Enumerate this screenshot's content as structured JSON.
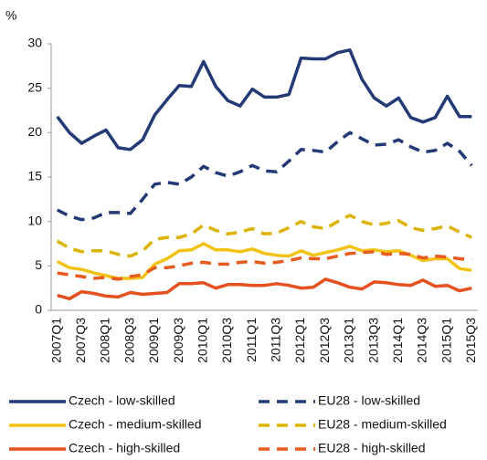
{
  "chart_data": {
    "type": "line",
    "y_label": "%",
    "categories": [
      "2007Q1",
      null,
      "2007Q3",
      null,
      "2008Q1",
      null,
      "2008Q3",
      null,
      "2009Q1",
      null,
      "2009Q3",
      null,
      "2010Q1",
      null,
      "2010Q3",
      null,
      "2011Q1",
      null,
      "2011Q3",
      null,
      "2012Q1",
      null,
      "2012Q3",
      null,
      "2013Q1",
      null,
      "2013Q3",
      null,
      "2014Q1",
      null,
      "2014Q3",
      null,
      "2015Q1",
      null,
      "2015Q3"
    ],
    "ylim": [
      0,
      30
    ],
    "yticks": [
      0,
      5,
      10,
      15,
      20,
      25,
      30
    ],
    "series": [
      {
        "name": "Czech - low-skilled",
        "color": "#243a76",
        "dash": false,
        "values": [
          21.8,
          20,
          18.8,
          19.6,
          20.3,
          18.3,
          18.1,
          19.2,
          22,
          23.7,
          25.3,
          25.2,
          28,
          25.2,
          23.6,
          23,
          24.9,
          24,
          24,
          24.3,
          28.4,
          28.3,
          28.3,
          29,
          29.3,
          26,
          23.9,
          23,
          23.9,
          21.7,
          21.2,
          21.7,
          24.1,
          21.8,
          21.8
        ]
      },
      {
        "name": "EU28 - low-skilled",
        "color": "#243a76",
        "dash": true,
        "values": [
          11.3,
          10.6,
          10.2,
          10.4,
          11,
          11,
          10.9,
          12.5,
          14.2,
          14.4,
          14.2,
          15,
          16.2,
          15.5,
          15.1,
          15.6,
          16.3,
          15.7,
          15.6,
          16.8,
          18.1,
          18,
          17.8,
          19,
          20,
          19.3,
          18.6,
          18.7,
          19.2,
          18.4,
          17.8,
          18,
          18.8,
          17.9,
          16.3
        ]
      },
      {
        "name": "Czech - medium-skilled",
        "color": "#f2c314",
        "dash": false,
        "values": [
          5.5,
          4.8,
          4.6,
          4.2,
          3.9,
          3.6,
          3.6,
          3.7,
          5.2,
          5.8,
          6.7,
          6.8,
          7.5,
          6.8,
          6.8,
          6.6,
          6.9,
          6.4,
          6.2,
          6.1,
          6.7,
          6.2,
          6.5,
          6.8,
          7.2,
          6.7,
          6.8,
          6.6,
          6.7,
          6.2,
          5.6,
          5.8,
          5.8,
          4.7,
          4.5
        ]
      },
      {
        "name": "EU28 - medium-skilled",
        "color": "#dcb300",
        "dash": true,
        "values": [
          7.8,
          7,
          6.6,
          6.7,
          6.7,
          6.3,
          6.1,
          6.7,
          8,
          8.2,
          8.2,
          8.6,
          9.6,
          9,
          8.6,
          8.8,
          9.2,
          8.6,
          8.7,
          9.3,
          10,
          9.4,
          9.2,
          10,
          10.7,
          10,
          9.6,
          9.8,
          10.1,
          9.3,
          9,
          9.2,
          9.5,
          8.8,
          8.2
        ]
      },
      {
        "name": "Czech - high-skilled",
        "color": "#e6501e",
        "dash": false,
        "values": [
          1.7,
          1.3,
          2.1,
          1.9,
          1.6,
          1.5,
          2,
          1.8,
          1.9,
          2,
          3,
          3,
          3.1,
          2.5,
          2.9,
          2.9,
          2.8,
          2.8,
          3,
          2.8,
          2.5,
          2.6,
          3.5,
          3.1,
          2.6,
          2.4,
          3.2,
          3.1,
          2.9,
          2.8,
          3.4,
          2.7,
          2.8,
          2.2,
          2.5
        ]
      },
      {
        "name": "EU28 - high-skilled",
        "color": "#e85a1e",
        "dash": true,
        "values": [
          4.2,
          4,
          3.8,
          3.6,
          3.7,
          3.5,
          3.8,
          4,
          4.8,
          4.8,
          5,
          5.3,
          5.4,
          5.2,
          5.2,
          5.4,
          5.5,
          5.3,
          5.4,
          5.6,
          5.9,
          5.8,
          5.8,
          6.1,
          6.4,
          6.5,
          6.6,
          6.3,
          6.4,
          6.3,
          5.9,
          6.1,
          6,
          5.8,
          5.7
        ]
      }
    ]
  }
}
